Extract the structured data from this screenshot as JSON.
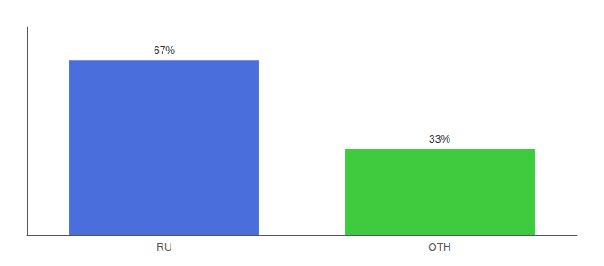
{
  "chart_data": {
    "type": "bar",
    "categories": [
      "RU",
      "OTH"
    ],
    "values": [
      67,
      33
    ],
    "value_labels": [
      "67%",
      "33%"
    ],
    "colors": [
      "#4a6edb",
      "#3ecb3e"
    ],
    "ylim": [
      0,
      80
    ],
    "data_labels": true,
    "tick_labels": "x",
    "grid": false
  }
}
